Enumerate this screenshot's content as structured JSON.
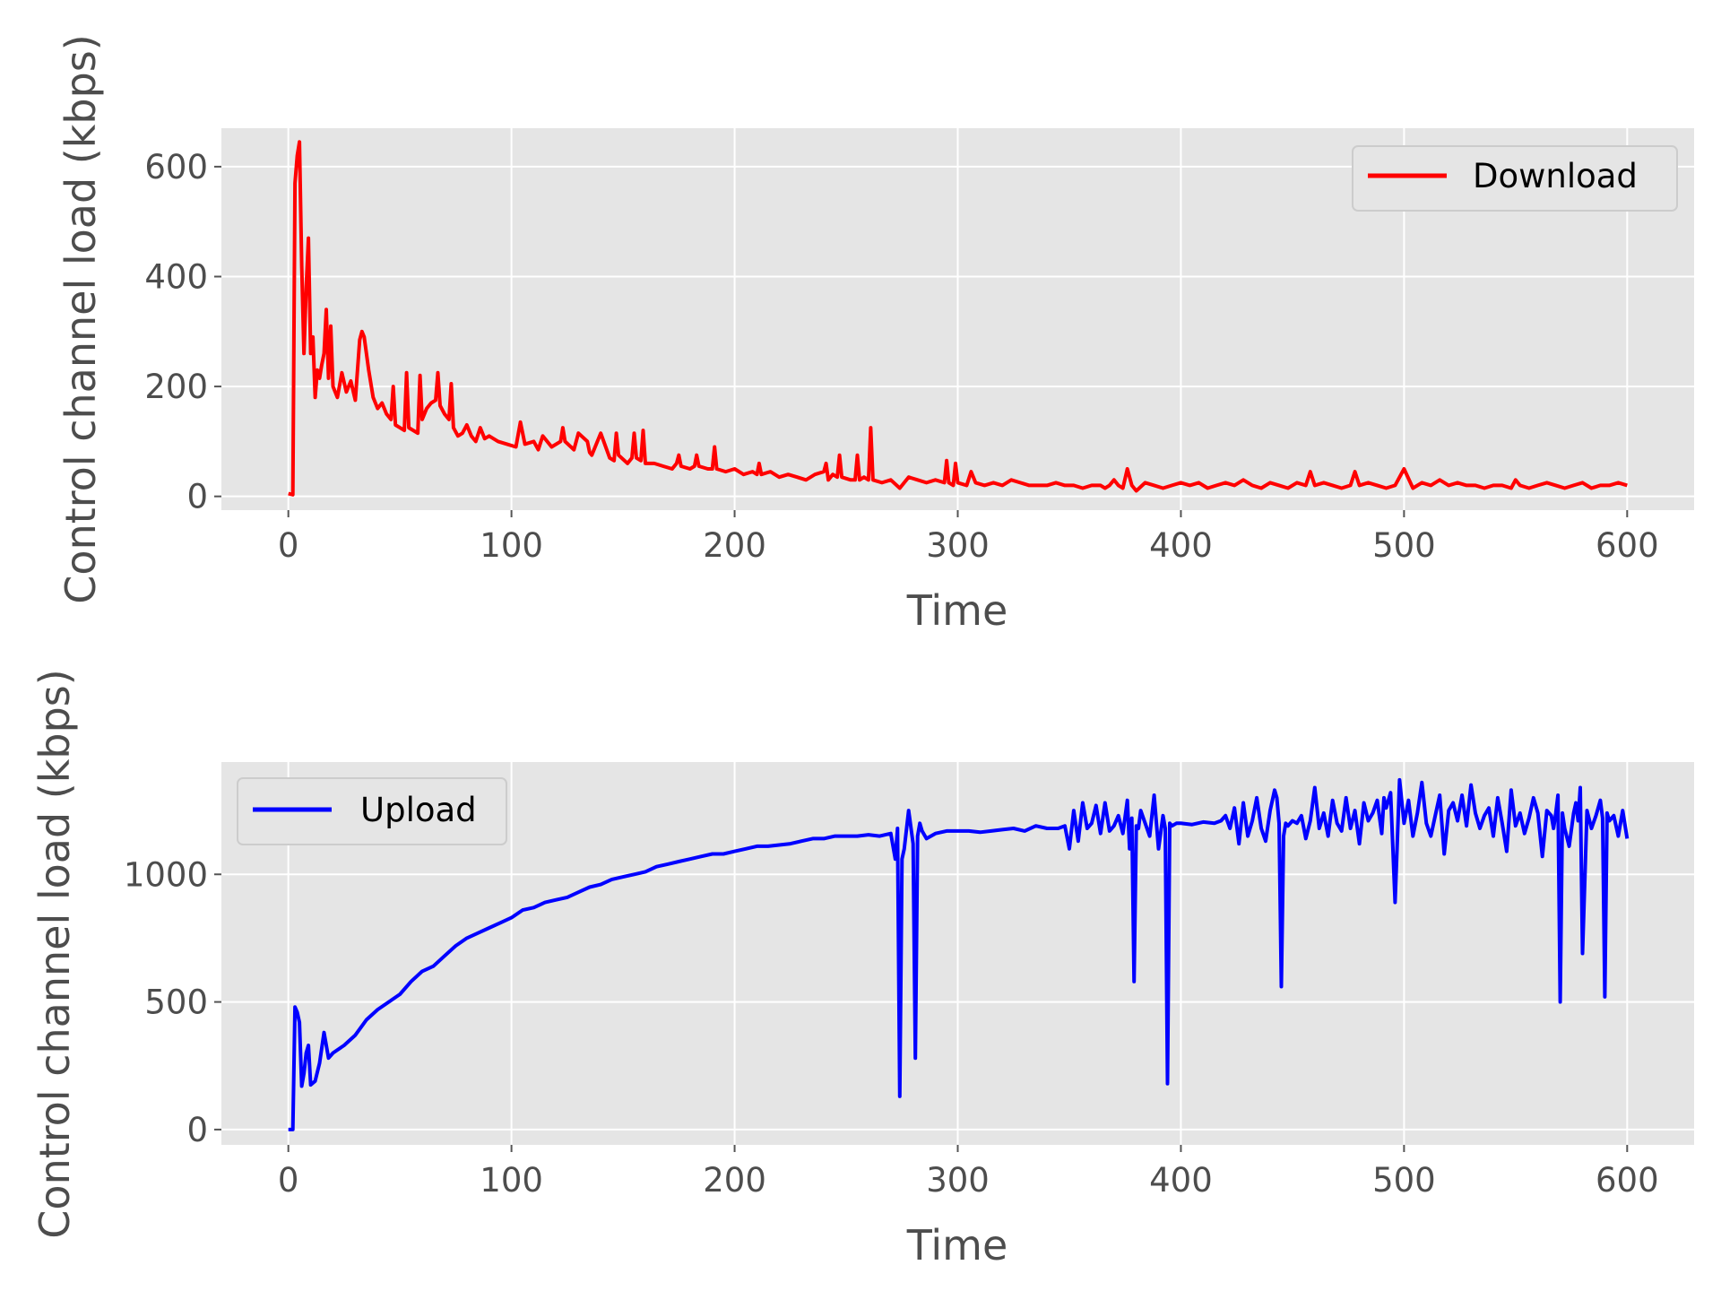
{
  "chart_data": [
    {
      "type": "line",
      "xlabel": "Time",
      "ylabel": "Control channel load (kbps)",
      "xlim": [
        -30,
        630
      ],
      "ylim": [
        -25,
        670
      ],
      "xticks": [
        0,
        100,
        200,
        300,
        400,
        500,
        600
      ],
      "yticks": [
        0,
        200,
        400,
        600
      ],
      "grid": true,
      "legend_position": "upper right",
      "series": [
        {
          "name": "Download",
          "color": "#ff0000",
          "x": [
            0,
            2,
            3,
            4,
            5,
            6,
            7,
            8,
            9,
            10,
            11,
            12,
            13,
            14,
            15,
            16,
            17,
            18,
            19,
            20,
            22,
            24,
            26,
            28,
            30,
            32,
            33,
            34,
            36,
            38,
            40,
            42,
            44,
            46,
            47,
            48,
            50,
            52,
            53,
            54,
            56,
            58,
            59,
            60,
            62,
            64,
            66,
            67,
            68,
            70,
            72,
            73,
            74,
            76,
            78,
            80,
            82,
            84,
            86,
            88,
            90,
            94,
            98,
            102,
            104,
            106,
            110,
            112,
            114,
            118,
            122,
            123,
            124,
            128,
            130,
            134,
            135,
            136,
            140,
            144,
            146,
            147,
            148,
            152,
            154,
            155,
            156,
            158,
            159,
            160,
            164,
            168,
            172,
            174,
            175,
            176,
            180,
            182,
            183,
            184,
            188,
            190,
            191,
            192,
            196,
            200,
            204,
            208,
            210,
            211,
            212,
            216,
            220,
            224,
            228,
            232,
            236,
            240,
            241,
            242,
            244,
            246,
            247,
            248,
            252,
            254,
            255,
            256,
            258,
            260,
            261,
            262,
            266,
            270,
            274,
            278,
            282,
            286,
            290,
            294,
            295,
            296,
            298,
            299,
            300,
            304,
            306,
            308,
            312,
            316,
            320,
            324,
            328,
            332,
            336,
            340,
            344,
            348,
            352,
            356,
            360,
            364,
            366,
            368,
            370,
            372,
            374,
            376,
            378,
            380,
            384,
            388,
            392,
            396,
            400,
            404,
            408,
            412,
            416,
            420,
            424,
            428,
            432,
            436,
            440,
            444,
            448,
            452,
            456,
            458,
            460,
            464,
            468,
            472,
            476,
            478,
            480,
            484,
            488,
            492,
            496,
            500,
            504,
            508,
            512,
            516,
            520,
            524,
            528,
            532,
            536,
            540,
            544,
            548,
            550,
            552,
            556,
            560,
            564,
            568,
            572,
            576,
            580,
            584,
            588,
            592,
            596,
            600
          ],
          "y": [
            5,
            3,
            570,
            620,
            645,
            420,
            260,
            380,
            470,
            260,
            290,
            180,
            230,
            215,
            240,
            260,
            340,
            215,
            310,
            200,
            180,
            225,
            190,
            210,
            175,
            285,
            300,
            290,
            230,
            180,
            160,
            170,
            150,
            140,
            200,
            130,
            125,
            120,
            225,
            125,
            120,
            115,
            220,
            140,
            160,
            170,
            175,
            225,
            165,
            150,
            140,
            205,
            125,
            110,
            115,
            130,
            110,
            100,
            125,
            105,
            110,
            100,
            95,
            90,
            135,
            95,
            100,
            85,
            110,
            90,
            100,
            125,
            100,
            85,
            115,
            100,
            80,
            75,
            115,
            70,
            65,
            115,
            75,
            60,
            70,
            115,
            70,
            65,
            120,
            60,
            60,
            55,
            50,
            60,
            75,
            55,
            50,
            55,
            75,
            55,
            50,
            50,
            90,
            50,
            45,
            50,
            40,
            45,
            40,
            60,
            40,
            45,
            35,
            40,
            35,
            30,
            40,
            45,
            60,
            30,
            40,
            35,
            75,
            35,
            30,
            30,
            75,
            30,
            35,
            30,
            125,
            30,
            25,
            30,
            15,
            35,
            30,
            25,
            30,
            25,
            65,
            25,
            20,
            60,
            25,
            20,
            45,
            25,
            20,
            25,
            20,
            30,
            25,
            20,
            20,
            20,
            25,
            20,
            20,
            15,
            20,
            20,
            15,
            20,
            30,
            20,
            15,
            50,
            20,
            10,
            25,
            20,
            15,
            20,
            25,
            20,
            25,
            15,
            20,
            25,
            20,
            30,
            20,
            15,
            25,
            20,
            15,
            25,
            20,
            45,
            20,
            25,
            20,
            15,
            20,
            45,
            20,
            25,
            20,
            15,
            20,
            50,
            15,
            25,
            20,
            30,
            20,
            25,
            20,
            20,
            15,
            20,
            20,
            15,
            30,
            20,
            15,
            20,
            25,
            20,
            15,
            20,
            25,
            15,
            20,
            20,
            25,
            20
          ],
          "legend_label": "Download"
        }
      ]
    },
    {
      "type": "line",
      "xlabel": "Time",
      "ylabel": "Control channel load (kbps)",
      "xlim": [
        -30,
        630
      ],
      "ylim": [
        -60,
        1440
      ],
      "xticks": [
        0,
        100,
        200,
        300,
        400,
        500,
        600
      ],
      "yticks": [
        0,
        500,
        1000
      ],
      "grid": true,
      "legend_position": "upper left",
      "series": [
        {
          "name": "Upload",
          "color": "#0000ff",
          "x": [
            0,
            2,
            3,
            4,
            5,
            6,
            7,
            8,
            9,
            10,
            12,
            14,
            16,
            18,
            20,
            25,
            30,
            35,
            40,
            45,
            50,
            55,
            60,
            65,
            70,
            75,
            80,
            85,
            90,
            95,
            100,
            105,
            110,
            115,
            120,
            125,
            130,
            135,
            140,
            145,
            150,
            155,
            160,
            165,
            170,
            175,
            180,
            185,
            190,
            195,
            200,
            205,
            210,
            215,
            220,
            225,
            230,
            235,
            240,
            245,
            250,
            255,
            260,
            265,
            270,
            272,
            273,
            274,
            275,
            276,
            278,
            280,
            281,
            282,
            283,
            284,
            286,
            290,
            295,
            300,
            305,
            310,
            315,
            320,
            325,
            330,
            335,
            340,
            345,
            348,
            350,
            352,
            354,
            356,
            358,
            360,
            362,
            364,
            366,
            368,
            370,
            372,
            374,
            376,
            377,
            378,
            379,
            380,
            381,
            382,
            384,
            386,
            388,
            390,
            392,
            393,
            394,
            395,
            396,
            398,
            400,
            405,
            410,
            415,
            418,
            420,
            422,
            424,
            426,
            428,
            430,
            432,
            434,
            436,
            438,
            440,
            442,
            443,
            444,
            445,
            446,
            447,
            448,
            450,
            452,
            454,
            456,
            458,
            460,
            462,
            464,
            466,
            468,
            470,
            472,
            474,
            476,
            478,
            480,
            482,
            484,
            486,
            488,
            490,
            491,
            492,
            494,
            496,
            498,
            500,
            502,
            504,
            506,
            508,
            510,
            512,
            514,
            516,
            518,
            520,
            522,
            524,
            526,
            528,
            530,
            532,
            534,
            536,
            538,
            540,
            542,
            544,
            546,
            548,
            550,
            552,
            554,
            556,
            558,
            560,
            562,
            564,
            566,
            567,
            568,
            569,
            570,
            571,
            572,
            574,
            576,
            577,
            578,
            579,
            580,
            582,
            584,
            586,
            588,
            589,
            590,
            591,
            592,
            594,
            596,
            598,
            600
          ],
          "y": [
            0,
            0,
            480,
            460,
            420,
            170,
            220,
            300,
            330,
            175,
            190,
            260,
            380,
            280,
            300,
            330,
            370,
            430,
            470,
            500,
            530,
            580,
            620,
            640,
            680,
            720,
            750,
            770,
            790,
            810,
            830,
            860,
            870,
            890,
            900,
            910,
            930,
            950,
            960,
            980,
            990,
            1000,
            1010,
            1030,
            1040,
            1050,
            1060,
            1070,
            1080,
            1080,
            1090,
            1100,
            1110,
            1110,
            1115,
            1120,
            1130,
            1140,
            1140,
            1150,
            1150,
            1150,
            1155,
            1150,
            1160,
            1060,
            1180,
            130,
            1060,
            1100,
            1250,
            1120,
            280,
            1150,
            1200,
            1170,
            1140,
            1160,
            1170,
            1170,
            1170,
            1165,
            1170,
            1175,
            1180,
            1170,
            1190,
            1180,
            1180,
            1190,
            1100,
            1250,
            1130,
            1280,
            1180,
            1200,
            1270,
            1160,
            1280,
            1170,
            1190,
            1230,
            1160,
            1290,
            1100,
            1220,
            580,
            1190,
            1180,
            1250,
            1200,
            1150,
            1310,
            1100,
            1230,
            1180,
            180,
            1200,
            1190,
            1200,
            1200,
            1195,
            1205,
            1200,
            1210,
            1230,
            1180,
            1260,
            1120,
            1280,
            1150,
            1210,
            1300,
            1180,
            1130,
            1250,
            1330,
            1300,
            1200,
            560,
            1150,
            1200,
            1190,
            1210,
            1200,
            1230,
            1140,
            1210,
            1340,
            1180,
            1240,
            1150,
            1290,
            1200,
            1170,
            1300,
            1180,
            1250,
            1120,
            1280,
            1210,
            1240,
            1290,
            1160,
            1300,
            1260,
            1320,
            890,
            1370,
            1200,
            1290,
            1150,
            1240,
            1360,
            1200,
            1150,
            1230,
            1310,
            1080,
            1250,
            1280,
            1210,
            1310,
            1190,
            1350,
            1240,
            1180,
            1230,
            1260,
            1150,
            1300,
            1200,
            1090,
            1330,
            1190,
            1240,
            1160,
            1220,
            1300,
            1240,
            1070,
            1250,
            1230,
            1180,
            1240,
            1310,
            500,
            1240,
            1180,
            1110,
            1240,
            1280,
            1210,
            1340,
            690,
            1250,
            1180,
            1230,
            1290,
            1220,
            520,
            1240,
            1210,
            1230,
            1150,
            1250,
            1140
          ],
          "legend_label": "Upload"
        }
      ]
    }
  ]
}
